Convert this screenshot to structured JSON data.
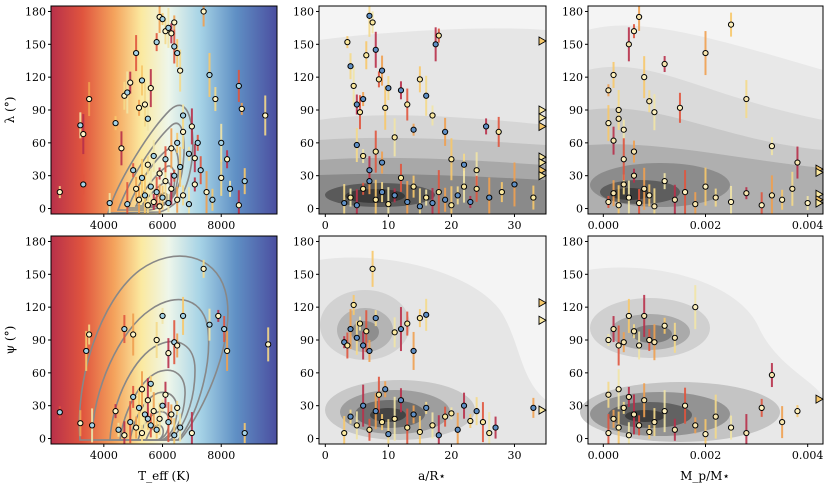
{
  "chart_data": [
    {
      "type": "scatter",
      "id": "teff-lambda",
      "xlabel": "T_eff (K)",
      "ylabel": "λ (°)",
      "xlim": [
        2200,
        9900
      ],
      "ylim": [
        -5,
        185
      ],
      "xticks": [
        "4000",
        "6000",
        "8000"
      ],
      "xtick_values": [
        4000,
        6000,
        8000
      ],
      "yticks": [
        "0",
        "30",
        "60",
        "90",
        "120",
        "150",
        "180"
      ],
      "ytick_values": [
        0,
        30,
        60,
        90,
        120,
        150,
        180
      ],
      "background": "temperature colormap (red → yellow → blue)",
      "overlay": "contour lines",
      "points": [
        [
          2500,
          15
        ],
        [
          3200,
          76
        ],
        [
          3300,
          68
        ],
        [
          3300,
          22
        ],
        [
          3500,
          100
        ],
        [
          4400,
          78
        ],
        [
          4700,
          103
        ],
        [
          4800,
          106
        ],
        [
          4900,
          115
        ],
        [
          5100,
          142
        ],
        [
          5200,
          92
        ],
        [
          5300,
          117
        ],
        [
          5400,
          95
        ],
        [
          5500,
          82
        ],
        [
          5600,
          110
        ],
        [
          5800,
          152
        ],
        [
          5900,
          175
        ],
        [
          6000,
          173
        ],
        [
          6100,
          162
        ],
        [
          6200,
          165
        ],
        [
          6300,
          160
        ],
        [
          6400,
          148
        ],
        [
          6400,
          170
        ],
        [
          6500,
          142
        ],
        [
          6600,
          126
        ],
        [
          6700,
          85
        ],
        [
          7000,
          75
        ],
        [
          7200,
          60
        ],
        [
          7400,
          180
        ],
        [
          7600,
          122
        ],
        [
          7800,
          100
        ],
        [
          8000,
          60
        ],
        [
          8200,
          45
        ],
        [
          8600,
          112
        ],
        [
          8700,
          91
        ],
        [
          8800,
          25
        ],
        [
          9500,
          85
        ],
        [
          4200,
          5
        ],
        [
          4600,
          55
        ],
        [
          5000,
          35
        ],
        [
          5200,
          8
        ],
        [
          5400,
          12
        ],
        [
          5500,
          3
        ],
        [
          5600,
          20
        ],
        [
          5700,
          6
        ],
        [
          5800,
          15
        ],
        [
          5900,
          2
        ],
        [
          6000,
          10
        ],
        [
          6100,
          25
        ],
        [
          6200,
          5
        ],
        [
          6300,
          18
        ],
        [
          6400,
          30
        ],
        [
          6500,
          8
        ],
        [
          6600,
          38
        ],
        [
          6700,
          12
        ],
        [
          6900,
          4
        ],
        [
          7100,
          22
        ],
        [
          7300,
          35
        ],
        [
          7500,
          15
        ],
        [
          7700,
          8
        ],
        [
          8000,
          28
        ],
        [
          8300,
          18
        ],
        [
          8600,
          3
        ],
        [
          4800,
          4
        ],
        [
          5100,
          18
        ],
        [
          5300,
          28
        ],
        [
          5500,
          40
        ],
        [
          5700,
          48
        ],
        [
          5900,
          32
        ],
        [
          6100,
          45
        ],
        [
          6300,
          55
        ],
        [
          6500,
          60
        ],
        [
          6700,
          70
        ],
        [
          6900,
          50
        ],
        [
          7100,
          46
        ]
      ]
    },
    {
      "type": "scatter",
      "id": "aR-lambda",
      "xlabel": "a/R⋆",
      "ylabel": "",
      "xlim": [
        -1,
        35
      ],
      "ylim": [
        -5,
        185
      ],
      "xticks": [
        "0",
        "10",
        "20",
        "30"
      ],
      "xtick_values": [
        0,
        10,
        20,
        30
      ],
      "yticks": [
        "0",
        "30",
        "60",
        "90",
        "120",
        "150",
        "180"
      ],
      "ytick_values": [
        0,
        30,
        60,
        90,
        120,
        150,
        180
      ],
      "overlay": "filled density (grey)",
      "points": [
        [
          3.5,
          152
        ],
        [
          4,
          130
        ],
        [
          4.5,
          112
        ],
        [
          5,
          95
        ],
        [
          5.5,
          88
        ],
        [
          6,
          100
        ],
        [
          6.5,
          140
        ],
        [
          7,
          176
        ],
        [
          7.5,
          170
        ],
        [
          8,
          145
        ],
        [
          8.5,
          118
        ],
        [
          9,
          126
        ],
        [
          9.5,
          92
        ],
        [
          10,
          110
        ],
        [
          11,
          65
        ],
        [
          12,
          108
        ],
        [
          13,
          95
        ],
        [
          14,
          72
        ],
        [
          15,
          118
        ],
        [
          16,
          103
        ],
        [
          17,
          85
        ],
        [
          17.5,
          150
        ],
        [
          18,
          158
        ],
        [
          19,
          70
        ],
        [
          20,
          45
        ],
        [
          22,
          40
        ],
        [
          24,
          35
        ],
        [
          25.5,
          75
        ],
        [
          27.5,
          70
        ],
        [
          30,
          22
        ],
        [
          33,
          10
        ],
        [
          3,
          5
        ],
        [
          4,
          10
        ],
        [
          5,
          3
        ],
        [
          6,
          18
        ],
        [
          7,
          25
        ],
        [
          8,
          8
        ],
        [
          9,
          15
        ],
        [
          10,
          4
        ],
        [
          11,
          12
        ],
        [
          12,
          28
        ],
        [
          13,
          6
        ],
        [
          14,
          20
        ],
        [
          15,
          2
        ],
        [
          16,
          10
        ],
        [
          17,
          5
        ],
        [
          18,
          15
        ],
        [
          19,
          8
        ],
        [
          20,
          3
        ],
        [
          21,
          12
        ],
        [
          22,
          20
        ],
        [
          23,
          6
        ],
        [
          24,
          18
        ],
        [
          26,
          10
        ],
        [
          28,
          15
        ],
        [
          5,
          58
        ],
        [
          6,
          48
        ],
        [
          7,
          35
        ],
        [
          8,
          52
        ],
        [
          9,
          42
        ]
      ],
      "edge_markers_y": [
        153,
        90,
        83,
        75,
        47,
        42,
        35,
        30
      ]
    },
    {
      "type": "scatter",
      "id": "mass-lambda",
      "xlabel": "M_p/M⋆",
      "ylabel": "",
      "xlim": [
        -0.0003,
        0.0043
      ],
      "ylim": [
        -5,
        185
      ],
      "xticks": [
        "0.000",
        "0.002",
        "0.004"
      ],
      "xtick_values": [
        0,
        0.002,
        0.004
      ],
      "yticks": [
        "0",
        "30",
        "60",
        "90",
        "120",
        "150",
        "180"
      ],
      "ytick_values": [
        0,
        30,
        60,
        90,
        120,
        150,
        180
      ],
      "overlay": "filled density (grey)",
      "points": [
        [
          0.0001,
          108
        ],
        [
          0.0002,
          122
        ],
        [
          0.0003,
          90
        ],
        [
          0.0004,
          72
        ],
        [
          0.0005,
          150
        ],
        [
          0.0006,
          162
        ],
        [
          0.0007,
          175
        ],
        [
          0.0008,
          120
        ],
        [
          0.0009,
          98
        ],
        [
          0.001,
          88
        ],
        [
          0.0012,
          132
        ],
        [
          0.0015,
          92
        ],
        [
          0.002,
          142
        ],
        [
          0.0025,
          168
        ],
        [
          0.0028,
          100
        ],
        [
          0.0033,
          57
        ],
        [
          0.0038,
          42
        ],
        [
          0.0001,
          6
        ],
        [
          0.0002,
          14
        ],
        [
          0.0003,
          3
        ],
        [
          0.0004,
          22
        ],
        [
          0.0005,
          10
        ],
        [
          0.0006,
          30
        ],
        [
          0.0007,
          5
        ],
        [
          0.0008,
          18
        ],
        [
          0.0009,
          12
        ],
        [
          0.001,
          2
        ],
        [
          0.0012,
          25
        ],
        [
          0.0014,
          8
        ],
        [
          0.0016,
          15
        ],
        [
          0.0018,
          4
        ],
        [
          0.002,
          20
        ],
        [
          0.0022,
          10
        ],
        [
          0.0025,
          6
        ],
        [
          0.0028,
          14
        ],
        [
          0.0031,
          3
        ],
        [
          0.0033,
          12
        ],
        [
          0.0035,
          8
        ],
        [
          0.0037,
          18
        ],
        [
          0.004,
          5
        ],
        [
          0.0002,
          62
        ],
        [
          0.0004,
          45
        ],
        [
          0.0006,
          52
        ],
        [
          0.0001,
          78
        ],
        [
          0.0003,
          82
        ]
      ],
      "edge_markers_y": [
        36,
        33,
        13,
        8,
        5
      ]
    },
    {
      "type": "scatter",
      "id": "teff-psi",
      "xlabel": "T_eff (K)",
      "ylabel": "ψ (°)",
      "xlim": [
        2200,
        9900
      ],
      "ylim": [
        -5,
        185
      ],
      "xticks": [
        "4000",
        "6000",
        "8000"
      ],
      "xtick_values": [
        4000,
        6000,
        8000
      ],
      "yticks": [
        "0",
        "30",
        "60",
        "90",
        "120",
        "150",
        "180"
      ],
      "ytick_values": [
        0,
        30,
        60,
        90,
        120,
        150,
        180
      ],
      "background": "temperature colormap (red → yellow → blue)",
      "overlay": "contour lines",
      "points": [
        [
          2500,
          24
        ],
        [
          3200,
          14
        ],
        [
          3400,
          80
        ],
        [
          3500,
          95
        ],
        [
          3600,
          12
        ],
        [
          4400,
          25
        ],
        [
          4700,
          100
        ],
        [
          5000,
          95
        ],
        [
          5500,
          18
        ],
        [
          5800,
          90
        ],
        [
          6000,
          112
        ],
        [
          6200,
          78
        ],
        [
          6400,
          88
        ],
        [
          6500,
          85
        ],
        [
          6700,
          112
        ],
        [
          7400,
          155
        ],
        [
          7600,
          104
        ],
        [
          7900,
          112
        ],
        [
          8100,
          100
        ],
        [
          8200,
          80
        ],
        [
          8800,
          5
        ],
        [
          9600,
          86
        ],
        [
          4500,
          8
        ],
        [
          4700,
          3
        ],
        [
          4900,
          15
        ],
        [
          5100,
          10
        ],
        [
          5200,
          28
        ],
        [
          5300,
          5
        ],
        [
          5400,
          22
        ],
        [
          5500,
          35
        ],
        [
          5600,
          12
        ],
        [
          5700,
          25
        ],
        [
          5800,
          8
        ],
        [
          5900,
          18
        ],
        [
          6000,
          30
        ],
        [
          6100,
          40
        ],
        [
          6200,
          15
        ],
        [
          6300,
          22
        ],
        [
          6400,
          3
        ],
        [
          6500,
          28
        ],
        [
          6600,
          10
        ],
        [
          7000,
          5
        ],
        [
          5000,
          38
        ],
        [
          5300,
          45
        ],
        [
          5600,
          50
        ]
      ]
    },
    {
      "type": "scatter",
      "id": "aR-psi",
      "xlabel": "a/R⋆",
      "ylabel": "",
      "xlim": [
        -1,
        35
      ],
      "ylim": [
        -5,
        185
      ],
      "xticks": [
        "0",
        "10",
        "20",
        "30"
      ],
      "xtick_values": [
        0,
        10,
        20,
        30
      ],
      "yticks": [
        "0",
        "30",
        "60",
        "90",
        "120",
        "150",
        "180"
      ],
      "ytick_values": [
        0,
        30,
        60,
        90,
        120,
        150,
        180
      ],
      "overlay": "filled density (grey)",
      "points": [
        [
          3,
          88
        ],
        [
          3.5,
          85
        ],
        [
          4,
          100
        ],
        [
          4.5,
          122
        ],
        [
          5,
          92
        ],
        [
          5.5,
          105
        ],
        [
          6,
          85
        ],
        [
          6.5,
          98
        ],
        [
          7,
          80
        ],
        [
          7.5,
          155
        ],
        [
          8,
          110
        ],
        [
          11,
          97
        ],
        [
          12,
          100
        ],
        [
          13,
          105
        ],
        [
          14,
          80
        ],
        [
          15,
          110
        ],
        [
          16,
          113
        ],
        [
          20,
          23
        ],
        [
          22,
          30
        ],
        [
          25,
          15
        ],
        [
          33,
          28
        ],
        [
          3,
          5
        ],
        [
          4,
          20
        ],
        [
          5,
          12
        ],
        [
          6,
          30
        ],
        [
          7,
          8
        ],
        [
          8,
          25
        ],
        [
          9,
          15
        ],
        [
          10,
          4
        ],
        [
          11,
          18
        ],
        [
          12,
          35
        ],
        [
          13,
          10
        ],
        [
          14,
          22
        ],
        [
          15,
          6
        ],
        [
          16,
          28
        ],
        [
          17,
          12
        ],
        [
          18,
          3
        ],
        [
          19,
          20
        ],
        [
          21,
          8
        ],
        [
          23,
          16
        ],
        [
          24,
          25
        ],
        [
          26,
          5
        ],
        [
          27,
          10
        ],
        [
          8.5,
          40
        ],
        [
          9.5,
          45
        ]
      ],
      "edge_markers_y": [
        124,
        108,
        26
      ]
    },
    {
      "type": "scatter",
      "id": "mass-psi",
      "xlabel": "M_p/M⋆",
      "ylabel": "",
      "xlim": [
        -0.0003,
        0.0043
      ],
      "ylim": [
        -5,
        185
      ],
      "xticks": [
        "0.000",
        "0.002",
        "0.004"
      ],
      "xtick_values": [
        0,
        0.002,
        0.004
      ],
      "yticks": [
        "0",
        "30",
        "60",
        "90",
        "120",
        "150",
        "180"
      ],
      "ytick_values": [
        0,
        30,
        60,
        90,
        120,
        150,
        180
      ],
      "overlay": "filled density (grey)",
      "points": [
        [
          0.0001,
          90
        ],
        [
          0.0002,
          100
        ],
        [
          0.0003,
          85
        ],
        [
          0.0004,
          88
        ],
        [
          0.0005,
          112
        ],
        [
          0.0006,
          98
        ],
        [
          0.0007,
          85
        ],
        [
          0.0008,
          112
        ],
        [
          0.0009,
          90
        ],
        [
          0.001,
          88
        ],
        [
          0.0012,
          103
        ],
        [
          0.0014,
          92
        ],
        [
          0.0018,
          120
        ],
        [
          0.0033,
          58
        ],
        [
          0.0001,
          5
        ],
        [
          0.0002,
          18
        ],
        [
          0.0003,
          10
        ],
        [
          0.0004,
          28
        ],
        [
          0.0005,
          3
        ],
        [
          0.0006,
          22
        ],
        [
          0.0007,
          12
        ],
        [
          0.0008,
          35
        ],
        [
          0.0009,
          6
        ],
        [
          0.001,
          15
        ],
        [
          0.0012,
          25
        ],
        [
          0.0014,
          8
        ],
        [
          0.0016,
          30
        ],
        [
          0.0018,
          12
        ],
        [
          0.002,
          4
        ],
        [
          0.0022,
          20
        ],
        [
          0.0025,
          10
        ],
        [
          0.0028,
          5
        ],
        [
          0.0031,
          28
        ],
        [
          0.0035,
          15
        ],
        [
          0.0038,
          25
        ],
        [
          0.0001,
          40
        ],
        [
          0.0003,
          45
        ],
        [
          0.0005,
          38
        ]
      ],
      "edge_markers_y": [
        36
      ]
    }
  ]
}
